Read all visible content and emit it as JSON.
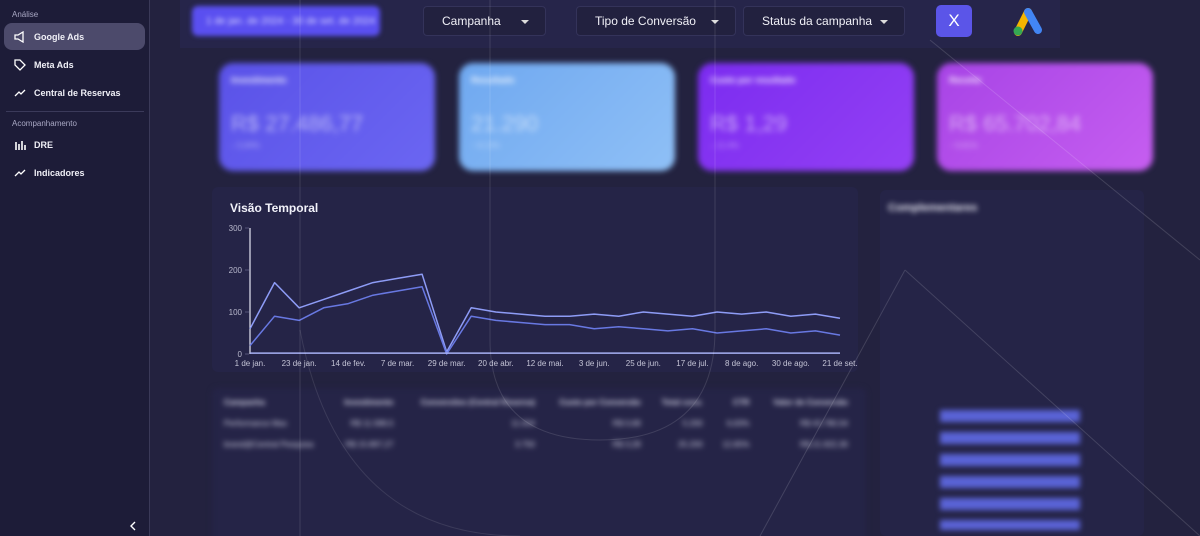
{
  "sidebar": {
    "sections": [
      {
        "title": "Análise",
        "items": [
          "Google Ads",
          "Meta Ads",
          "Central de Reservas"
        ]
      },
      {
        "title": "Acompanhamento",
        "items": [
          "DRE",
          "Indicadores"
        ]
      }
    ]
  },
  "date_range": "1 de jan. de 2024 - 30 de set. de 2024",
  "filters": [
    "Campanha",
    "Tipo de Conversão",
    "Status da campanha"
  ],
  "close_button": "X",
  "kpis": [
    {
      "title": "Investimento",
      "value": "R$ 27.486,77",
      "delta": "↓ 5,94%"
    },
    {
      "title": "Resultado",
      "value": "21.290",
      "delta": "↑ 8,13%"
    },
    {
      "title": "Custo por resultado",
      "value": "R$ 1,29",
      "delta": "↓ 12,4%"
    },
    {
      "title": "Receita",
      "value": "R$ 65.702,84",
      "delta": "↑ 9,81%"
    }
  ],
  "chart_data": {
    "type": "line",
    "title": "Visão Temporal",
    "categories": [
      "1 de jan.",
      null,
      "23 de jan.",
      null,
      "14 de fev.",
      null,
      "7 de mar.",
      null,
      "29 de mar.",
      null,
      "20 de abr.",
      null,
      "12 de mai.",
      null,
      "3 de jun.",
      null,
      "25 de jun.",
      null,
      "17 de jul.",
      null,
      "8 de ago.",
      null,
      "30 de ago.",
      null,
      "21 de set."
    ],
    "series": [
      {
        "color": "#8e9cf6",
        "values": [
          60,
          170,
          110,
          130,
          150,
          170,
          180,
          190,
          5,
          110,
          100,
          95,
          90,
          90,
          95,
          90,
          100,
          95,
          90,
          100,
          95,
          100,
          90,
          95,
          85
        ]
      },
      {
        "color": "#6878e2",
        "values": [
          20,
          90,
          80,
          110,
          120,
          140,
          150,
          160,
          0,
          90,
          80,
          75,
          70,
          70,
          60,
          65,
          60,
          55,
          60,
          50,
          55,
          60,
          50,
          55,
          45
        ]
      },
      {
        "color": "#a7b0f4",
        "values": [
          2,
          2,
          2,
          2,
          2,
          2,
          2,
          2,
          2,
          2,
          2,
          2,
          2,
          2,
          2,
          2,
          2,
          2,
          2,
          2,
          2,
          2,
          2,
          2,
          2
        ]
      }
    ],
    "ylim": [
      0,
      300
    ],
    "yticks": [
      0,
      100,
      200,
      300
    ]
  },
  "table": {
    "headers": [
      "Campanha",
      "Investimento",
      "Conversões (Central Reserva)",
      "Custo por Conversão",
      "Total conv.",
      "CTR",
      "Valor de Conversão"
    ],
    "rows": [
      [
        "Performance Max",
        "R$ 11.589,5",
        "11.004",
        "R$ 0,68",
        "5.200",
        "6,63%",
        "R$ 43.780,54"
      ],
      [
        "brand@Central Pesquisa",
        "R$ 15.897,27",
        "3.750",
        "R$ 3,28",
        "25.200",
        "12,65%",
        "R$ 21.922,30"
      ]
    ]
  },
  "complementares": {
    "title": "Complementares"
  }
}
